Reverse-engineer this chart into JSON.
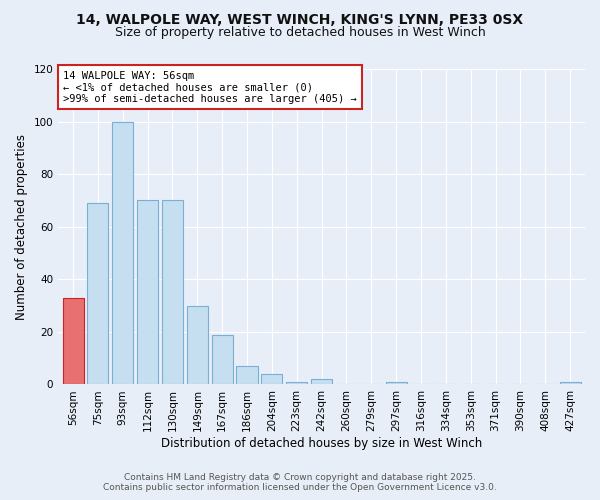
{
  "title": "14, WALPOLE WAY, WEST WINCH, KING'S LYNN, PE33 0SX",
  "subtitle": "Size of property relative to detached houses in West Winch",
  "xlabel": "Distribution of detached houses by size in West Winch",
  "ylabel": "Number of detached properties",
  "bin_labels": [
    "56sqm",
    "75sqm",
    "93sqm",
    "112sqm",
    "130sqm",
    "149sqm",
    "167sqm",
    "186sqm",
    "204sqm",
    "223sqm",
    "242sqm",
    "260sqm",
    "279sqm",
    "297sqm",
    "316sqm",
    "334sqm",
    "353sqm",
    "371sqm",
    "390sqm",
    "408sqm",
    "427sqm"
  ],
  "values": [
    33,
    69,
    100,
    70,
    70,
    30,
    19,
    7,
    4,
    1,
    2,
    0,
    0,
    1,
    0,
    0,
    0,
    0,
    0,
    0,
    1
  ],
  "highlight_index": 0,
  "highlight_color": "#e87070",
  "bar_color": "#c5dff0",
  "bar_edge_color": "#7aafd4",
  "highlight_edge_color": "#cc2222",
  "annotation_title": "14 WALPOLE WAY: 56sqm",
  "annotation_line1": "← <1% of detached houses are smaller (0)",
  "annotation_line2": ">99% of semi-detached houses are larger (405) →",
  "annotation_box_color": "#ffffff",
  "annotation_box_edge_color": "#cc2222",
  "ylim": [
    0,
    120
  ],
  "yticks": [
    0,
    20,
    40,
    60,
    80,
    100,
    120
  ],
  "footer_line1": "Contains HM Land Registry data © Crown copyright and database right 2025.",
  "footer_line2": "Contains public sector information licensed under the Open Government Licence v3.0.",
  "bg_color": "#e8eef8",
  "grid_color": "#ffffff",
  "title_fontsize": 10,
  "subtitle_fontsize": 9,
  "axis_label_fontsize": 8.5,
  "tick_fontsize": 7.5,
  "annotation_fontsize": 7.5,
  "footer_fontsize": 6.5
}
